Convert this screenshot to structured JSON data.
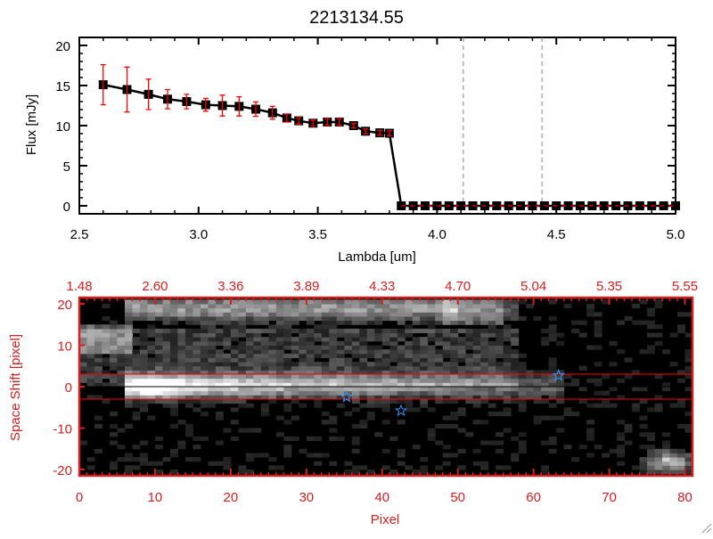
{
  "chart_data": [
    {
      "type": "line",
      "title": "2213134.55",
      "xlabel": "Lambda [um]",
      "ylabel": "Flux [mJy]",
      "xlim": [
        2.5,
        5.0
      ],
      "ylim": [
        -1,
        21
      ],
      "xticks": [
        "2.5",
        "3.0",
        "3.5",
        "4.0",
        "4.5",
        "5.0"
      ],
      "xtick_values": [
        2.5,
        3.0,
        3.5,
        4.0,
        4.5,
        5.0
      ],
      "yticks": [
        "0",
        "5",
        "10",
        "15",
        "20"
      ],
      "ytick_values": [
        0,
        5,
        10,
        15,
        20
      ],
      "vlines": [
        4.11,
        4.44
      ],
      "series": [
        {
          "name": "flux",
          "x": [
            2.6,
            2.7,
            2.79,
            2.87,
            2.95,
            3.03,
            3.1,
            3.17,
            3.24,
            3.31,
            3.37,
            3.42,
            3.48,
            3.54,
            3.59,
            3.65,
            3.7,
            3.76,
            3.8,
            3.85,
            3.9,
            3.95,
            4.0,
            4.05,
            4.1,
            4.15,
            4.2,
            4.25,
            4.3,
            4.35,
            4.4,
            4.45,
            4.5,
            4.55,
            4.6,
            4.65,
            4.7,
            4.75,
            4.8,
            4.85,
            4.9,
            4.95,
            5.0
          ],
          "y": [
            15.1,
            14.5,
            13.9,
            13.3,
            13.0,
            12.6,
            12.5,
            12.4,
            12.05,
            11.6,
            10.95,
            10.6,
            10.3,
            10.45,
            10.45,
            10.0,
            9.3,
            9.1,
            9.05,
            0,
            0,
            0,
            0,
            0,
            0,
            0,
            0,
            0,
            0,
            0,
            0,
            0,
            0,
            0,
            0,
            0,
            0,
            0,
            0,
            0,
            0,
            0,
            0
          ],
          "err": [
            2.5,
            2.8,
            1.9,
            1.2,
            0.9,
            0.8,
            1.3,
            1.2,
            0.9,
            0.8,
            0.5,
            0.4,
            0.4,
            0.4,
            0.4,
            0.3,
            0.3,
            0.3,
            0.3,
            0,
            0,
            0,
            0,
            0,
            0,
            0,
            0,
            0,
            0,
            0,
            0,
            0,
            0,
            0,
            0,
            0,
            0,
            0,
            0,
            0,
            0,
            0,
            0
          ]
        }
      ],
      "colors": {
        "line": "#000000",
        "error": "#ff0000",
        "vline": "#808080"
      }
    },
    {
      "type": "heatmap",
      "xlabel": "Pixel",
      "ylabel": "Space Shift [pixel]",
      "xlim": [
        0,
        81
      ],
      "ylim": [
        -21.5,
        21.5
      ],
      "xticks": [
        "0",
        "10",
        "20",
        "30",
        "40",
        "50",
        "60",
        "70",
        "80"
      ],
      "xtick_values": [
        0,
        10,
        20,
        30,
        40,
        50,
        60,
        70,
        80
      ],
      "top_xticks": [
        "1.48",
        "2.60",
        "3.36",
        "3.89",
        "4.33",
        "4.70",
        "5.04",
        "5.35",
        "5.55"
      ],
      "yticks": [
        "-20",
        "-10",
        "0",
        "10",
        "20"
      ],
      "ytick_values": [
        -20,
        -10,
        0,
        10,
        20
      ],
      "hlines": [
        {
          "y": 3,
          "color": "#ff0000"
        },
        {
          "y": -3,
          "color": "#ff0000"
        },
        {
          "y": 0,
          "color": "#000000"
        }
      ],
      "stars": [
        {
          "x": 35.3,
          "y": -2.5
        },
        {
          "x": 42.5,
          "y": -5.8
        },
        {
          "x": 63.3,
          "y": 2.7
        }
      ],
      "colors": {
        "axis": "#d42020",
        "star": "#3399ff"
      }
    }
  ]
}
